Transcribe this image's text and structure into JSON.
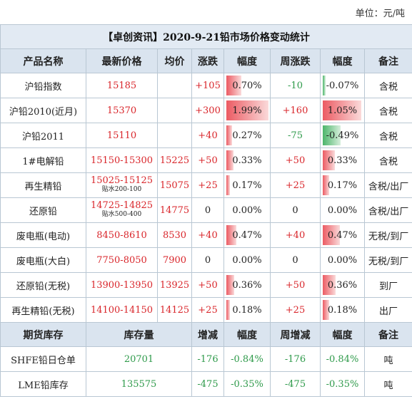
{
  "unit_label": "单位：元/吨",
  "title": "【卓创资讯】2020-9-21铅市场价格变动统计",
  "headers": [
    "产品名称",
    "最新价格",
    "均价",
    "涨跌",
    "幅度",
    "周涨跌",
    "幅度",
    "备注"
  ],
  "rows": [
    {
      "name": "沪铅指数",
      "price": "15185",
      "price_note": "",
      "avg": "",
      "chg": "+105",
      "pct": "0.70%",
      "pct_val": 0.7,
      "wchg": "-10",
      "wpct": "-0.07%",
      "wpct_val": -0.07,
      "remark": "含税"
    },
    {
      "name": "沪铅2010(近月)",
      "price": "15370",
      "price_note": "",
      "avg": "",
      "chg": "+300",
      "pct": "1.99%",
      "pct_val": 1.99,
      "wchg": "+160",
      "wpct": "1.05%",
      "wpct_val": 1.05,
      "remark": "含税"
    },
    {
      "name": "沪铅2011",
      "price": "15110",
      "price_note": "",
      "avg": "",
      "chg": "+40",
      "pct": "0.27%",
      "pct_val": 0.27,
      "wchg": "-75",
      "wpct": "-0.49%",
      "wpct_val": -0.49,
      "remark": "含税"
    },
    {
      "name": "1#电解铅",
      "price": "15150-15300",
      "price_note": "",
      "avg": "15225",
      "chg": "+50",
      "pct": "0.33%",
      "pct_val": 0.33,
      "wchg": "+50",
      "wpct": "0.33%",
      "wpct_val": 0.33,
      "remark": "含税"
    },
    {
      "name": "再生精铅",
      "price": "15025-15125",
      "price_note": "贴水200-100",
      "avg": "15075",
      "chg": "+25",
      "pct": "0.17%",
      "pct_val": 0.17,
      "wchg": "+25",
      "wpct": "0.17%",
      "wpct_val": 0.17,
      "remark": "含税/出厂"
    },
    {
      "name": "还原铅",
      "price": "14725-14825",
      "price_note": "贴水500-400",
      "avg": "14775",
      "chg": "0",
      "pct": "0.00%",
      "pct_val": 0,
      "wchg": "0",
      "wpct": "0.00%",
      "wpct_val": 0,
      "remark": "含税/出厂"
    },
    {
      "name": "废电瓶(电动)",
      "price": "8450-8610",
      "price_note": "",
      "avg": "8530",
      "chg": "+40",
      "pct": "0.47%",
      "pct_val": 0.47,
      "wchg": "+40",
      "wpct": "0.47%",
      "wpct_val": 0.47,
      "remark": "无税/到厂"
    },
    {
      "name": "废电瓶(大白)",
      "price": "7750-8050",
      "price_note": "",
      "avg": "7900",
      "chg": "0",
      "pct": "0.00%",
      "pct_val": 0,
      "wchg": "0",
      "wpct": "0.00%",
      "wpct_val": 0,
      "remark": "无税/到厂"
    },
    {
      "name": "还原铅(无税)",
      "price": "13900-13950",
      "price_note": "",
      "avg": "13925",
      "chg": "+50",
      "pct": "0.36%",
      "pct_val": 0.36,
      "wchg": "+50",
      "wpct": "0.36%",
      "wpct_val": 0.36,
      "remark": "到厂"
    },
    {
      "name": "再生精铅(无税)",
      "price": "14100-14150",
      "price_note": "",
      "avg": "14125",
      "chg": "+25",
      "pct": "0.18%",
      "pct_val": 0.18,
      "wchg": "+25",
      "wpct": "0.18%",
      "wpct_val": 0.18,
      "remark": "出厂"
    }
  ],
  "inventory_headers": [
    "期货库存",
    "库存量",
    "增减",
    "幅度",
    "周增减",
    "幅度",
    "备注"
  ],
  "inventory": [
    {
      "name": "SHFE铅日仓单",
      "qty": "20701",
      "chg": "-176",
      "pct": "-0.84%",
      "wchg": "-176",
      "wpct": "-0.84%",
      "remark": "吨"
    },
    {
      "name": "LME铅库存",
      "qty": "135575",
      "chg": "-475",
      "pct": "-0.35%",
      "wchg": "-475",
      "wpct": "-0.35%",
      "remark": "吨"
    }
  ],
  "colors": {
    "up": "#d9262b",
    "down": "#2e9a4a",
    "header_bg": "#dae4ef",
    "bar_up": "#ec5b63",
    "bar_down": "#4cb56a"
  }
}
